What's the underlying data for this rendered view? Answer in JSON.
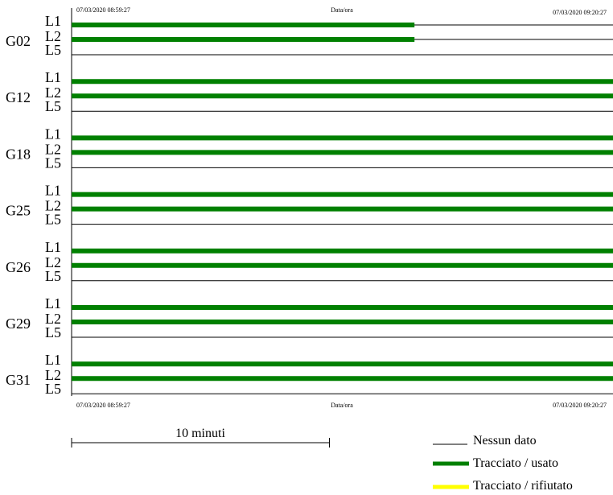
{
  "header": {
    "start_time": "07/03/2020 08:59:27",
    "axis_title": "Data/ora",
    "end_time": "07/03/2020 09:20:27"
  },
  "footer": {
    "start_time": "07/03/2020 08:59:27",
    "axis_title": "Data/ora",
    "end_time": "07/03/2020 09:20:27"
  },
  "scale_bar": {
    "label": "10 minuti",
    "minutes": 10
  },
  "legend": [
    {
      "label": "Nessun dato",
      "color": "#000000",
      "style": "thin"
    },
    {
      "label": "Tracciato / usato",
      "color": "#008000",
      "style": "thick"
    },
    {
      "label": "Tracciato / rifiutato",
      "color": "#ffff00",
      "style": "thick"
    }
  ],
  "colors": {
    "used": "#008000",
    "rejected": "#ffff00",
    "no_data": "#000000"
  },
  "chart_data": {
    "type": "timeline",
    "time_start": "07/03/2020 08:59:27",
    "time_end": "07/03/2020 09:20:27",
    "duration_minutes": 21,
    "satellites": [
      {
        "name": "G02",
        "signals": [
          {
            "name": "L1",
            "used": [
              [
                0,
                13.3
              ]
            ]
          },
          {
            "name": "L2",
            "used": [
              [
                0,
                13.3
              ]
            ]
          },
          {
            "name": "L5",
            "used": []
          }
        ]
      },
      {
        "name": "G12",
        "signals": [
          {
            "name": "L1",
            "used": [
              [
                0,
                21
              ]
            ]
          },
          {
            "name": "L2",
            "used": [
              [
                0,
                21
              ]
            ]
          },
          {
            "name": "L5",
            "used": []
          }
        ]
      },
      {
        "name": "G18",
        "signals": [
          {
            "name": "L1",
            "used": [
              [
                0,
                21
              ]
            ]
          },
          {
            "name": "L2",
            "used": [
              [
                0,
                21
              ]
            ]
          },
          {
            "name": "L5",
            "used": []
          }
        ]
      },
      {
        "name": "G25",
        "signals": [
          {
            "name": "L1",
            "used": [
              [
                0,
                21
              ]
            ]
          },
          {
            "name": "L2",
            "used": [
              [
                0,
                21
              ]
            ]
          },
          {
            "name": "L5",
            "used": []
          }
        ]
      },
      {
        "name": "G26",
        "signals": [
          {
            "name": "L1",
            "used": [
              [
                0,
                21
              ]
            ]
          },
          {
            "name": "L2",
            "used": [
              [
                0,
                21
              ]
            ]
          },
          {
            "name": "L5",
            "used": []
          }
        ]
      },
      {
        "name": "G29",
        "signals": [
          {
            "name": "L1",
            "used": [
              [
                0,
                21
              ]
            ]
          },
          {
            "name": "L2",
            "used": [
              [
                0,
                21
              ]
            ]
          },
          {
            "name": "L5",
            "used": []
          }
        ]
      },
      {
        "name": "G31",
        "signals": [
          {
            "name": "L1",
            "used": [
              [
                0,
                21
              ]
            ]
          },
          {
            "name": "L2",
            "used": [
              [
                0,
                21
              ]
            ]
          },
          {
            "name": "L5",
            "used": []
          }
        ]
      }
    ]
  }
}
